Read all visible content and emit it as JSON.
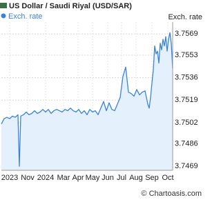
{
  "chart_data": {
    "type": "line",
    "title": "US Dollar / Saudi Riyal (USD/SAR)",
    "y_axis_label": "Exch. rate",
    "watermark": "© Chartoasis.com",
    "x": [
      0,
      4,
      8,
      12,
      16,
      20,
      24,
      26,
      28,
      32,
      36,
      40,
      44,
      48,
      52,
      56,
      60,
      64,
      68,
      72,
      76,
      80,
      84,
      88,
      92,
      96,
      100,
      104,
      108,
      112,
      116,
      120,
      124,
      128,
      132,
      136,
      140,
      144,
      148,
      152,
      156,
      160,
      164,
      168,
      172,
      176,
      180,
      184,
      188,
      192,
      196,
      200,
      204,
      208,
      212,
      214,
      216,
      218,
      220,
      222,
      224,
      226,
      228,
      230,
      232,
      234,
      236,
      238,
      240,
      242,
      244,
      246,
      248
    ],
    "series": [
      {
        "name": "Exch. rate",
        "color": "#3b82d6",
        "fill": "#e4f0fb",
        "values": [
          3.7501,
          3.7505,
          3.7506,
          3.7505,
          3.7507,
          3.7506,
          3.7508,
          3.7469,
          3.7507,
          3.7508,
          3.751,
          3.7508,
          3.7509,
          3.7511,
          3.7509,
          3.751,
          3.7512,
          3.751,
          3.7512,
          3.7509,
          3.7511,
          3.7512,
          3.7511,
          3.751,
          3.7512,
          3.7511,
          3.7513,
          3.7511,
          3.751,
          3.7512,
          3.7509,
          3.7511,
          3.7508,
          3.7512,
          3.751,
          3.7511,
          3.7508,
          3.7513,
          3.7518,
          3.7511,
          3.7517,
          3.7512,
          3.7511,
          3.7516,
          3.7521,
          3.7537,
          3.7544,
          3.7525,
          3.7524,
          3.7522,
          3.7527,
          3.7523,
          3.7525,
          3.7526,
          3.7516,
          3.7513,
          3.7521,
          3.7532,
          3.7542,
          3.756,
          3.7554,
          3.7556,
          3.7547,
          3.7562,
          3.7557,
          3.7565,
          3.756,
          3.7567,
          3.7556,
          3.7565,
          3.757,
          3.7562,
          3.7543
        ]
      }
    ],
    "xlim": [
      0,
      248
    ],
    "xticks": [
      {
        "value": 12,
        "label": "2023"
      },
      {
        "value": 38,
        "label": "Nov"
      },
      {
        "value": 64,
        "label": "2024"
      },
      {
        "value": 90,
        "label": "Mar"
      },
      {
        "value": 111,
        "label": "Apr"
      },
      {
        "value": 132,
        "label": "May"
      },
      {
        "value": 154,
        "label": "Jun"
      },
      {
        "value": 174,
        "label": "Jul"
      },
      {
        "value": 195,
        "label": "Aug"
      },
      {
        "value": 218,
        "label": "Sep"
      },
      {
        "value": 241,
        "label": "Oct"
      }
    ],
    "ylim": [
      3.7466,
      3.7578
    ],
    "yticks": [
      3.7469,
      3.7486,
      3.7502,
      3.7519,
      3.7536,
      3.7553,
      3.7569
    ],
    "grid": true
  }
}
